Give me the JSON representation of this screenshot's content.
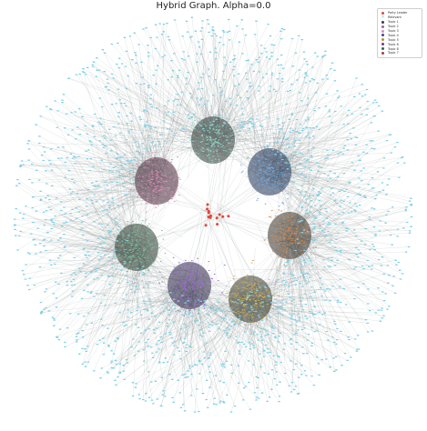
{
  "title": "Hybrid Graph. Alpha=0.0",
  "legend": [
    {
      "label": "Party Leader",
      "color": "#e0473c",
      "marker": "dot"
    },
    {
      "label": "Relevant",
      "color": "#7fd2e6",
      "marker": "x"
    },
    {
      "label": "Topic 1",
      "color": "#3a3a3a",
      "marker": "dot"
    },
    {
      "label": "Topic 2",
      "color": "#a05fb0",
      "marker": "dot"
    },
    {
      "label": "Topic 3",
      "color": "#e08ab8",
      "marker": "dot"
    },
    {
      "label": "Topic 4",
      "color": "#2f4f8f",
      "marker": "dot"
    },
    {
      "label": "Topic 5",
      "color": "#c8883a",
      "marker": "dot"
    },
    {
      "label": "Topic 6",
      "color": "#7a3a6a",
      "marker": "dot"
    },
    {
      "label": "Topic 8",
      "color": "#2a6a5a",
      "marker": "dot"
    },
    {
      "label": "Topic 7",
      "color": "#b03a3a",
      "marker": "dot"
    }
  ],
  "colors": {
    "edge": "#5a6b6a",
    "leaf": "#7fd2e6",
    "center": "#e0473c"
  },
  "clusters": [
    {
      "name": "cluster-top",
      "core": "#2c3a35",
      "accent": "#8ad6c6"
    },
    {
      "name": "cluster-upper-right",
      "core": "#1f3355",
      "accent": "#6fa8e0"
    },
    {
      "name": "cluster-right",
      "core": "#3a3228",
      "accent": "#d8894a"
    },
    {
      "name": "cluster-lower-right",
      "core": "#3a3a28",
      "accent": "#d8b04a"
    },
    {
      "name": "cluster-lower-left",
      "core": "#30284a",
      "accent": "#9a6ad0"
    },
    {
      "name": "cluster-left",
      "core": "#263a2c",
      "accent": "#7ac0a0"
    },
    {
      "name": "cluster-upper-left",
      "core": "#4a2a3a",
      "accent": "#e08ab8"
    }
  ]
}
